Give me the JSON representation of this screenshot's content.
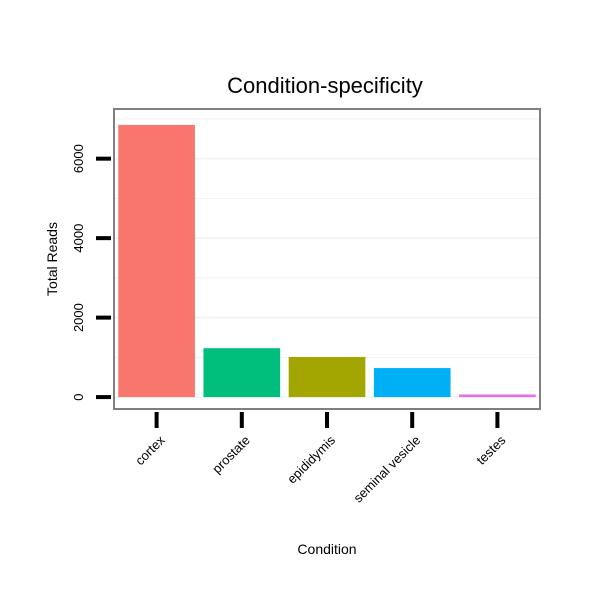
{
  "chart_data": {
    "type": "bar",
    "title": "Condition-specificity",
    "xlabel": "Condition",
    "ylabel": "Total Reads",
    "categories": [
      "cortex",
      "prostate",
      "epididymis",
      "seminal vesicle",
      "testes"
    ],
    "values": [
      6850,
      1230,
      1010,
      730,
      65
    ],
    "colors": [
      "#F8766D",
      "#00BF7D",
      "#A3A500",
      "#00B0F6",
      "#E76BF3"
    ],
    "yticks": [
      0,
      2000,
      4000,
      6000
    ],
    "ytick_labels": [
      "0",
      "2000",
      "4000",
      "6000"
    ],
    "ylim": [
      -300,
      7250
    ],
    "grid": true,
    "legend": "none"
  }
}
